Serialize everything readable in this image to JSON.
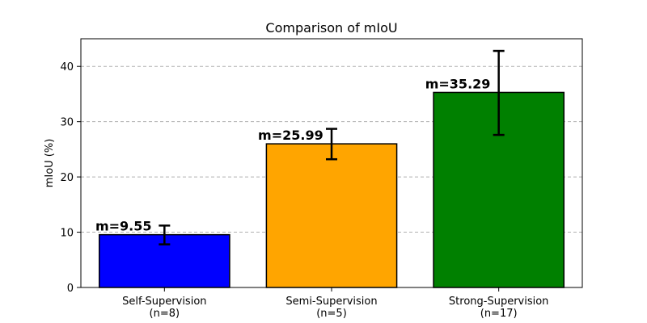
{
  "chart_data": {
    "type": "bar",
    "title": "Comparison of mIoU",
    "xlabel": "",
    "ylabel": "mIoU (%)",
    "ylim": [
      0,
      45
    ],
    "yticks": [
      0,
      10,
      20,
      30,
      40
    ],
    "grid": "y-dashed",
    "categories": [
      {
        "name": "Self-Supervision",
        "count_label": "(n=8)"
      },
      {
        "name": "Semi-Supervision",
        "count_label": "(n=5)"
      },
      {
        "name": "Strong-Supervision",
        "count_label": "(n=17)"
      }
    ],
    "values": [
      9.55,
      25.99,
      35.29
    ],
    "error_low": [
      7.8,
      23.2,
      27.6
    ],
    "error_high": [
      11.2,
      28.7,
      42.8
    ],
    "data_labels": [
      "m=9.55",
      "m=25.99",
      "m=35.29"
    ],
    "colors": [
      "#0000ff",
      "#ffa500",
      "#008000"
    ]
  }
}
